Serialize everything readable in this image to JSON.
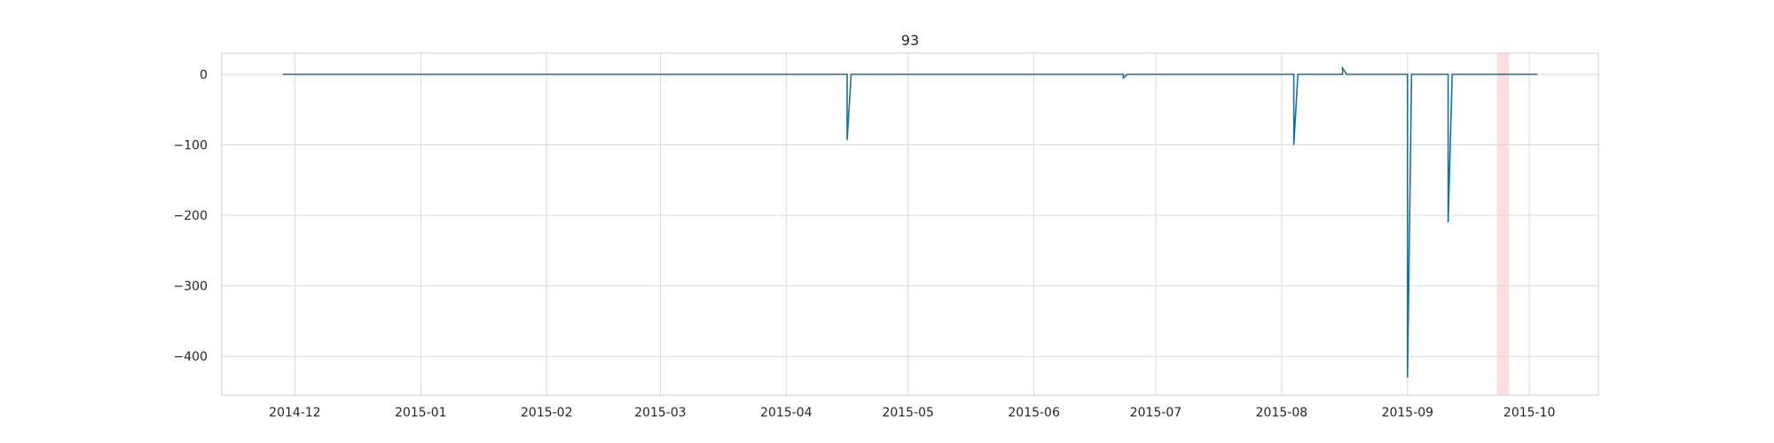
{
  "chart_data": {
    "type": "line",
    "title": "93",
    "xlabel": "",
    "ylabel": "",
    "x_range": [
      "2014-11-13",
      "2015-10-18"
    ],
    "ylim": [
      -455,
      30
    ],
    "grid": true,
    "x_ticks": [
      "2014-12",
      "2015-01",
      "2015-02",
      "2015-03",
      "2015-04",
      "2015-05",
      "2015-06",
      "2015-07",
      "2015-08",
      "2015-09",
      "2015-10"
    ],
    "y_ticks": [
      0,
      -100,
      -200,
      -300,
      -400
    ],
    "y_tick_labels": [
      "0",
      "−100",
      "−200",
      "−300",
      "−400"
    ],
    "series": [
      {
        "color": "#1f6f94",
        "x": [
          "2014-11-28",
          "2015-04-16",
          "2015-04-16",
          "2015-04-17",
          "2015-06-23",
          "2015-06-23",
          "2015-06-24",
          "2015-08-04",
          "2015-08-04",
          "2015-08-05",
          "2015-08-16",
          "2015-08-16",
          "2015-08-17",
          "2015-09-01",
          "2015-09-01",
          "2015-09-02",
          "2015-09-11",
          "2015-09-11",
          "2015-09-12",
          "2015-10-03"
        ],
        "y": [
          0,
          0,
          -93,
          0,
          0,
          -5,
          0,
          0,
          -100,
          0,
          0,
          9,
          0,
          0,
          -430,
          0,
          0,
          -210,
          0,
          0
        ]
      }
    ],
    "highlight_span": {
      "start": "2015-09-23",
      "end": "2015-09-26",
      "color": "#f8c8cc"
    }
  }
}
